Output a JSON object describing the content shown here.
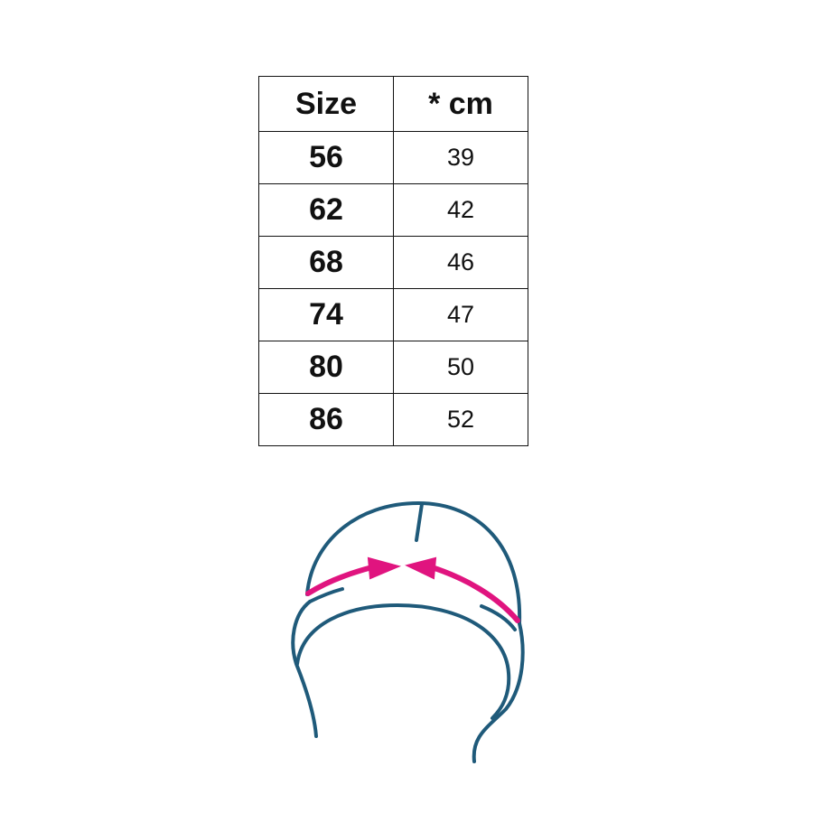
{
  "table": {
    "headers": [
      "Size",
      "* cm"
    ],
    "rows": [
      [
        "56",
        "39"
      ],
      [
        "62",
        "42"
      ],
      [
        "68",
        "46"
      ],
      [
        "74",
        "47"
      ],
      [
        "80",
        "50"
      ],
      [
        "86",
        "52"
      ]
    ]
  },
  "illustration": {
    "icon": "hat-head-circumference-icon",
    "line_color": "#1f5a7a",
    "arrow_color": "#e0147f"
  }
}
